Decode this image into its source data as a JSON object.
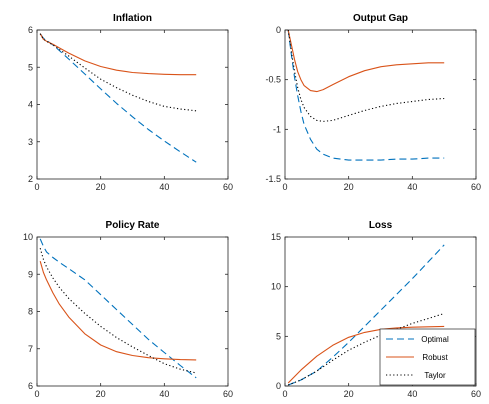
{
  "chart_data": [
    {
      "type": "line",
      "title": "Inflation",
      "xlim": [
        0,
        60
      ],
      "ylim": [
        2,
        6
      ],
      "xticks": [
        "0",
        "20",
        "40",
        "60"
      ],
      "yticks": [
        "2",
        "3",
        "4",
        "5",
        "6"
      ],
      "x": [
        1,
        2,
        3,
        5,
        7,
        10,
        15,
        20,
        25,
        30,
        35,
        40,
        45,
        50
      ],
      "series": [
        {
          "name": "Optimal",
          "style": "dashed",
          "color": "#0072BD",
          "values": [
            5.9,
            5.78,
            5.72,
            5.6,
            5.45,
            5.22,
            4.82,
            4.42,
            4.03,
            3.67,
            3.33,
            3.02,
            2.73,
            2.45
          ]
        },
        {
          "name": "Robust",
          "style": "solid",
          "color": "#D95319",
          "values": [
            5.9,
            5.75,
            5.7,
            5.62,
            5.52,
            5.38,
            5.17,
            5.02,
            4.92,
            4.86,
            4.83,
            4.81,
            4.8,
            4.8
          ]
        },
        {
          "name": "Taylor",
          "style": "dotted",
          "color": "#000000",
          "values": [
            5.9,
            5.76,
            5.7,
            5.6,
            5.48,
            5.3,
            4.98,
            4.68,
            4.45,
            4.25,
            4.08,
            3.95,
            3.88,
            3.83
          ]
        }
      ]
    },
    {
      "type": "line",
      "title": "Output Gap",
      "xlim": [
        0,
        60
      ],
      "ylim": [
        -1.5,
        0
      ],
      "xticks": [
        "0",
        "20",
        "40",
        "60"
      ],
      "yticks": [
        "-1.5",
        "-1",
        "-0.5",
        "0"
      ],
      "x": [
        1,
        2,
        3,
        4,
        5,
        6,
        8,
        10,
        12,
        15,
        20,
        25,
        30,
        35,
        40,
        45,
        50
      ],
      "series": [
        {
          "name": "Optimal",
          "style": "dashed",
          "color": "#0072BD",
          "values": [
            0,
            -0.25,
            -0.48,
            -0.66,
            -0.82,
            -0.95,
            -1.1,
            -1.2,
            -1.25,
            -1.29,
            -1.31,
            -1.31,
            -1.31,
            -1.3,
            -1.3,
            -1.29,
            -1.29
          ]
        },
        {
          "name": "Robust",
          "style": "solid",
          "color": "#D95319",
          "values": [
            0,
            -0.15,
            -0.3,
            -0.42,
            -0.5,
            -0.56,
            -0.61,
            -0.62,
            -0.6,
            -0.55,
            -0.47,
            -0.41,
            -0.37,
            -0.35,
            -0.34,
            -0.33,
            -0.33
          ]
        },
        {
          "name": "Taylor",
          "style": "dotted",
          "color": "#000000",
          "values": [
            0,
            -0.22,
            -0.42,
            -0.58,
            -0.7,
            -0.78,
            -0.87,
            -0.91,
            -0.92,
            -0.91,
            -0.86,
            -0.81,
            -0.77,
            -0.74,
            -0.72,
            -0.7,
            -0.69
          ]
        }
      ]
    },
    {
      "type": "line",
      "title": "Policy Rate",
      "xlim": [
        0,
        60
      ],
      "ylim": [
        6,
        10
      ],
      "xticks": [
        "0",
        "20",
        "40",
        "60"
      ],
      "yticks": [
        "6",
        "7",
        "8",
        "9",
        "10"
      ],
      "x": [
        1,
        2,
        3,
        5,
        7,
        10,
        15,
        20,
        25,
        30,
        35,
        40,
        45,
        50
      ],
      "series": [
        {
          "name": "Optimal",
          "style": "dashed",
          "color": "#0072BD",
          "values": [
            9.95,
            9.75,
            9.6,
            9.45,
            9.32,
            9.15,
            8.85,
            8.45,
            8.05,
            7.65,
            7.25,
            6.9,
            6.55,
            6.22
          ]
        },
        {
          "name": "Robust",
          "style": "solid",
          "color": "#D95319",
          "values": [
            9.35,
            9.05,
            8.85,
            8.5,
            8.2,
            7.85,
            7.4,
            7.1,
            6.92,
            6.82,
            6.76,
            6.73,
            6.71,
            6.7
          ]
        },
        {
          "name": "Taylor",
          "style": "dotted",
          "color": "#000000",
          "values": [
            9.7,
            9.4,
            9.2,
            8.9,
            8.65,
            8.35,
            7.95,
            7.6,
            7.3,
            7.05,
            6.82,
            6.6,
            6.45,
            6.35
          ]
        }
      ]
    },
    {
      "type": "line",
      "title": "Loss",
      "xlim": [
        0,
        60
      ],
      "ylim": [
        0,
        15
      ],
      "xticks": [
        "0",
        "20",
        "40",
        "60"
      ],
      "yticks": [
        "0",
        "5",
        "10",
        "15"
      ],
      "legend": "bottom-right",
      "x": [
        1,
        5,
        10,
        15,
        20,
        25,
        30,
        35,
        40,
        45,
        50
      ],
      "series": [
        {
          "name": "Optimal",
          "style": "dashed",
          "color": "#0072BD",
          "values": [
            0.1,
            0.6,
            1.5,
            2.9,
            4.4,
            6.0,
            7.6,
            9.2,
            10.8,
            12.5,
            14.2
          ]
        },
        {
          "name": "Robust",
          "style": "solid",
          "color": "#D95319",
          "values": [
            0.3,
            1.6,
            3.0,
            4.1,
            4.9,
            5.4,
            5.7,
            5.85,
            5.92,
            5.96,
            6.0
          ]
        },
        {
          "name": "Taylor",
          "style": "dotted",
          "color": "#000000",
          "values": [
            0.1,
            0.6,
            1.5,
            2.6,
            3.6,
            4.4,
            5.1,
            5.7,
            6.3,
            6.8,
            7.3
          ]
        }
      ]
    }
  ]
}
